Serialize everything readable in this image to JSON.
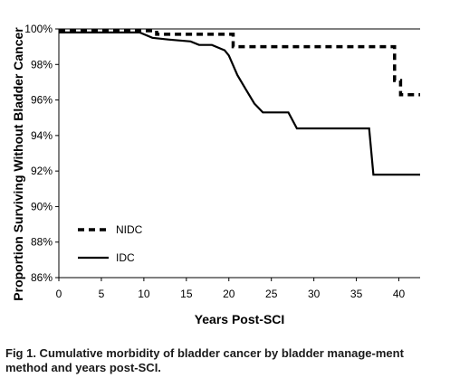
{
  "chart_data": {
    "type": "line",
    "xlabel": "Years Post-SCI",
    "ylabel": "Proportion Surviving Without Bladder Cancer",
    "xlim": [
      0,
      42.5
    ],
    "ylim": [
      86,
      100
    ],
    "x_ticks": [
      0,
      5,
      10,
      15,
      20,
      25,
      30,
      35,
      40
    ],
    "x_tick_labels": [
      "0",
      "5",
      "10",
      "15",
      "20",
      "25",
      "30",
      "35",
      "40"
    ],
    "y_ticks": [
      86,
      88,
      90,
      92,
      94,
      96,
      98,
      100
    ],
    "y_tick_labels": [
      "86%",
      "88%",
      "90%",
      "92%",
      "94%",
      "96%",
      "98%",
      "100%"
    ],
    "grid": false,
    "legend_position": "lower-left",
    "series": [
      {
        "name": "NIDC",
        "line_style": "dashed",
        "color": "#000000",
        "points": [
          [
            0,
            99.9
          ],
          [
            11.5,
            99.9
          ],
          [
            11.5,
            99.7
          ],
          [
            20.5,
            99.7
          ],
          [
            20.5,
            99.0
          ],
          [
            39.5,
            99.0
          ],
          [
            39.5,
            97.1
          ],
          [
            40.2,
            97.1
          ],
          [
            40.2,
            96.3
          ],
          [
            42.5,
            96.3
          ]
        ]
      },
      {
        "name": "IDC",
        "line_style": "solid",
        "color": "#000000",
        "points": [
          [
            0,
            99.8
          ],
          [
            9.5,
            99.8
          ],
          [
            11,
            99.5
          ],
          [
            13,
            99.4
          ],
          [
            15.5,
            99.3
          ],
          [
            16.5,
            99.1
          ],
          [
            18,
            99.1
          ],
          [
            19.5,
            98.8
          ],
          [
            20,
            98.5
          ],
          [
            21,
            97.4
          ],
          [
            22,
            96.6
          ],
          [
            23,
            95.8
          ],
          [
            24,
            95.3
          ],
          [
            27,
            95.3
          ],
          [
            28,
            94.4
          ],
          [
            36.5,
            94.4
          ],
          [
            37,
            91.8
          ],
          [
            42.5,
            91.8
          ]
        ]
      }
    ]
  },
  "caption": "Fig 1. Cumulative morbidity of bladder cancer by bladder manage-ment method and years post-SCI."
}
